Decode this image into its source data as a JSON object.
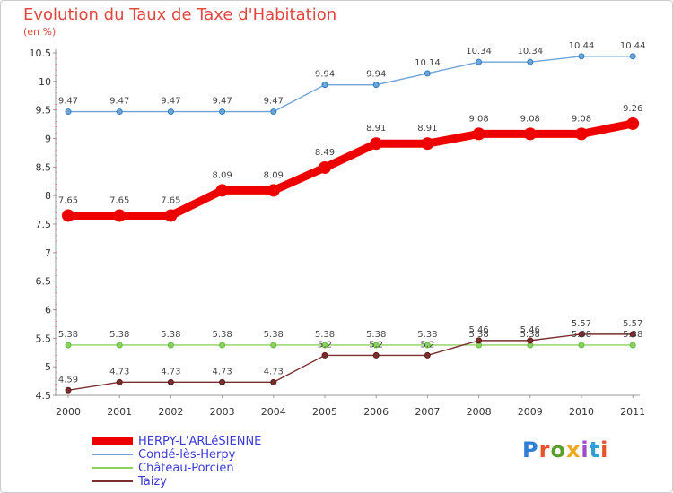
{
  "header": {
    "title": "Evolution du Taux de Taxe d'Habitation",
    "unit": "(en %)"
  },
  "logo": {
    "text": "Proxiti",
    "colors": [
      "#2f7fd4",
      "#e2552f",
      "#5a9e2f",
      "#f2a81c",
      "#9d4fc7",
      "#2f9fd4",
      "#e2552f"
    ]
  },
  "chart_data": {
    "type": "line",
    "title": "Evolution du Taux de Taxe d'Habitation",
    "ylabel": "(en %)",
    "x": [
      "2000",
      "2001",
      "2002",
      "2003",
      "2004",
      "2005",
      "2006",
      "2007",
      "2008",
      "2009",
      "2010",
      "2011"
    ],
    "ylim": [
      4.5,
      10.5
    ],
    "yticks": [
      "4.5",
      "5",
      "5.5",
      "6",
      "6.5",
      "7",
      "7.5",
      "8",
      "8.5",
      "9",
      "9.5",
      "10",
      "10.5"
    ],
    "grid": false,
    "legend_position": "bottom-left",
    "series": [
      {
        "name": "HERPY-L'ARLéSIENNE",
        "color": "#ee0000",
        "values": [
          7.65,
          7.65,
          7.65,
          8.09,
          8.09,
          8.49,
          8.91,
          8.91,
          9.08,
          9.08,
          9.08,
          9.26
        ],
        "labels": [
          "7.65",
          "7.65",
          "7.65",
          "8.09",
          "8.09",
          "8.49",
          "8.91",
          "8.91",
          "9.08",
          "9.08",
          "9.08",
          "9.26"
        ]
      },
      {
        "name": "Condé-lès-Herpy",
        "color": "#6ea4d8",
        "values": [
          9.47,
          9.47,
          9.47,
          9.47,
          9.47,
          9.94,
          9.94,
          10.14,
          10.34,
          10.34,
          10.44,
          10.44
        ],
        "labels": [
          "9.47",
          "9.47",
          "9.47",
          "9.47",
          "9.47",
          "9.94",
          "9.94",
          "10.14",
          "10.34",
          "10.34",
          "10.44",
          "10.44"
        ]
      },
      {
        "name": "Château-Porcien",
        "color": "#8ed160",
        "values": [
          5.38,
          5.38,
          5.38,
          5.38,
          5.38,
          5.38,
          5.38,
          5.38,
          5.38,
          5.38,
          5.38,
          5.38
        ],
        "labels": [
          "5.38",
          "5.38",
          "5.38",
          "5.38",
          "5.38",
          "5.38",
          "5.38",
          "5.38",
          "5.38",
          "5.38",
          "5.38",
          "5.38"
        ]
      },
      {
        "name": "Taizy",
        "color": "#7a2e2e",
        "values": [
          4.59,
          4.73,
          4.73,
          4.73,
          4.73,
          5.2,
          5.2,
          5.2,
          5.46,
          5.46,
          5.57,
          5.57
        ],
        "labels": [
          "4.59",
          "4.73",
          "4.73",
          "4.73",
          "4.73",
          "5.2",
          "5.2",
          "5.2",
          "5.46",
          "5.46",
          "5.57",
          "5.57"
        ]
      }
    ]
  }
}
